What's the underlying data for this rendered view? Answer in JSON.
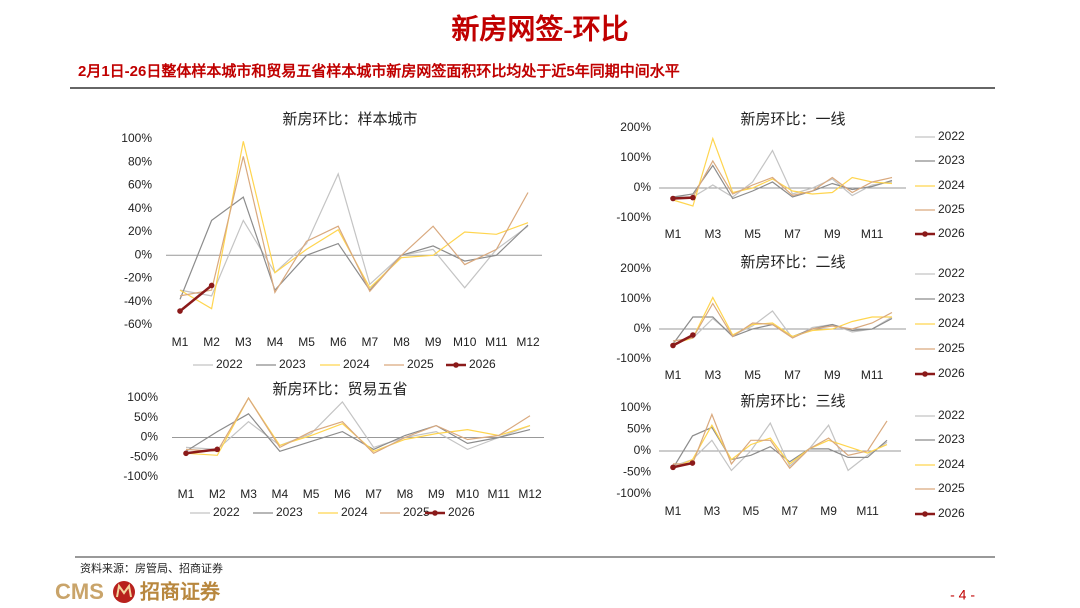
{
  "header": {
    "title": "新房网签-环比",
    "subtitle": "2月1日-26日整体样本城市和贸易五省样本城市新房网签面积环比均处于近5年同期中间水平"
  },
  "chart_data": [
    {
      "type": "line",
      "title": "新房环比：样本城市",
      "legend": "bottom",
      "categories": [
        "M1",
        "M2",
        "M3",
        "M4",
        "M5",
        "M6",
        "M7",
        "M8",
        "M9",
        "M10",
        "M11",
        "M12"
      ],
      "ylim": [
        -60,
        100
      ],
      "yticks": [
        {
          "value": -60,
          "label": "-60%"
        },
        {
          "value": -40,
          "label": "-40%"
        },
        {
          "value": -20,
          "label": "-20%"
        },
        {
          "value": 0,
          "label": "0%"
        },
        {
          "value": 20,
          "label": "20%"
        },
        {
          "value": 40,
          "label": "40%"
        },
        {
          "value": 60,
          "label": "60%"
        },
        {
          "value": 80,
          "label": "80%"
        },
        {
          "value": 100,
          "label": "100%"
        }
      ],
      "series": [
        {
          "name": "2022",
          "color": "#c4c4c4",
          "values": [
            -30,
            -35,
            30,
            -15,
            10,
            70,
            -25,
            0,
            5,
            -28,
            5,
            25
          ]
        },
        {
          "name": "2023",
          "color": "#8c8c8c",
          "values": [
            -38,
            30,
            50,
            -30,
            0,
            10,
            -30,
            0,
            8,
            -5,
            0,
            26
          ]
        },
        {
          "name": "2024",
          "color": "#ffd54f",
          "values": [
            -30,
            -46,
            98,
            -15,
            5,
            22,
            -28,
            -2,
            0,
            20,
            18,
            28
          ]
        },
        {
          "name": "2025",
          "color": "#d9a97e",
          "values": [
            -35,
            -30,
            85,
            -32,
            12,
            25,
            -31,
            0,
            25,
            -8,
            5,
            54
          ]
        },
        {
          "name": "2026",
          "color": "#8b1a1a",
          "values": [
            -48,
            -26,
            null,
            null,
            null,
            null,
            null,
            null,
            null,
            null,
            null,
            null
          ]
        }
      ]
    },
    {
      "type": "line",
      "title": "新房环比：贸易五省",
      "legend": "bottom",
      "categories": [
        "M1",
        "M2",
        "M3",
        "M4",
        "M5",
        "M6",
        "M7",
        "M8",
        "M9",
        "M10",
        "M11",
        "M12"
      ],
      "ylim": [
        -100,
        100
      ],
      "yticks": [
        {
          "value": -100,
          "label": "-100%"
        },
        {
          "value": -50,
          "label": "-50%"
        },
        {
          "value": 0,
          "label": "0%"
        },
        {
          "value": 50,
          "label": "50%"
        },
        {
          "value": 100,
          "label": "100%"
        }
      ],
      "series": [
        {
          "name": "2022",
          "color": "#c4c4c4",
          "values": [
            -25,
            -30,
            40,
            -20,
            10,
            90,
            -25,
            0,
            15,
            -30,
            0,
            30
          ]
        },
        {
          "name": "2023",
          "color": "#8c8c8c",
          "values": [
            -35,
            15,
            60,
            -35,
            -10,
            15,
            -30,
            5,
            30,
            -15,
            0,
            20
          ]
        },
        {
          "name": "2024",
          "color": "#ffd54f",
          "values": [
            -40,
            -45,
            100,
            -20,
            5,
            35,
            -35,
            -5,
            10,
            20,
            5,
            30
          ]
        },
        {
          "name": "2025",
          "color": "#d9a97e",
          "values": [
            -30,
            -35,
            100,
            -25,
            15,
            40,
            -40,
            0,
            30,
            -5,
            5,
            55
          ]
        },
        {
          "name": "2026",
          "color": "#8b1a1a",
          "values": [
            -40,
            -30,
            null,
            null,
            null,
            null,
            null,
            null,
            null,
            null,
            null,
            null
          ]
        }
      ]
    },
    {
      "type": "line",
      "title": "新房环比：一线",
      "legend": "right",
      "categories": [
        "M1",
        null,
        "M3",
        null,
        "M5",
        null,
        "M7",
        null,
        "M9",
        null,
        "M11",
        null
      ],
      "ylim": [
        -100,
        200
      ],
      "yticks": [
        {
          "value": -100,
          "label": "-100%"
        },
        {
          "value": 0,
          "label": "0%"
        },
        {
          "value": 100,
          "label": "100%"
        },
        {
          "value": 200,
          "label": "200%"
        }
      ],
      "series": [
        {
          "name": "2022",
          "color": "#c4c4c4",
          "values": [
            -30,
            -30,
            10,
            -30,
            20,
            125,
            -20,
            0,
            30,
            -25,
            10,
            20
          ]
        },
        {
          "name": "2023",
          "color": "#8c8c8c",
          "values": [
            -30,
            -20,
            75,
            -35,
            -10,
            20,
            -30,
            -10,
            15,
            -5,
            5,
            25
          ]
        },
        {
          "name": "2024",
          "color": "#ffd54f",
          "values": [
            -40,
            -60,
            165,
            -15,
            0,
            30,
            -10,
            -20,
            -15,
            35,
            20,
            15
          ]
        },
        {
          "name": "2025",
          "color": "#d9a97e",
          "values": [
            -35,
            -30,
            90,
            -20,
            10,
            35,
            -25,
            -10,
            35,
            -15,
            20,
            35
          ]
        },
        {
          "name": "2026",
          "color": "#8b1a1a",
          "values": [
            -35,
            -32,
            null,
            null,
            null,
            null,
            null,
            null,
            null,
            null,
            null,
            null
          ]
        }
      ]
    },
    {
      "type": "line",
      "title": "新房环比：二线",
      "legend": "right",
      "categories": [
        "M1",
        null,
        "M3",
        null,
        "M5",
        null,
        "M7",
        null,
        "M9",
        null,
        "M11",
        null
      ],
      "ylim": [
        -100,
        200
      ],
      "yticks": [
        {
          "value": -100,
          "label": "-100%"
        },
        {
          "value": 0,
          "label": "0%"
        },
        {
          "value": 100,
          "label": "100%"
        },
        {
          "value": 200,
          "label": "200%"
        }
      ],
      "series": [
        {
          "name": "2022",
          "color": "#c4c4c4",
          "values": [
            -40,
            -30,
            35,
            -20,
            10,
            60,
            -30,
            5,
            15,
            -10,
            0,
            40
          ]
        },
        {
          "name": "2023",
          "color": "#8c8c8c",
          "values": [
            -50,
            40,
            40,
            -25,
            0,
            15,
            -25,
            0,
            15,
            -5,
            0,
            35
          ]
        },
        {
          "name": "2024",
          "color": "#ffd54f",
          "values": [
            -50,
            -30,
            105,
            -20,
            15,
            20,
            -25,
            -5,
            0,
            25,
            40,
            40
          ]
        },
        {
          "name": "2025",
          "color": "#d9a97e",
          "values": [
            -40,
            -30,
            85,
            -25,
            20,
            15,
            -30,
            0,
            10,
            0,
            20,
            55
          ]
        },
        {
          "name": "2026",
          "color": "#8b1a1a",
          "values": [
            -55,
            -20,
            null,
            null,
            null,
            null,
            null,
            null,
            null,
            null,
            null,
            null
          ]
        }
      ]
    },
    {
      "type": "line",
      "title": "新房环比：三线",
      "legend": "right",
      "categories": [
        "M1",
        null,
        "M3",
        null,
        "M5",
        null,
        "M7",
        null,
        "M9",
        null,
        "M11",
        null
      ],
      "ylim": [
        -100,
        100
      ],
      "yticks": [
        {
          "value": -100,
          "label": "-100%"
        },
        {
          "value": -50,
          "label": "-50%"
        },
        {
          "value": 0,
          "label": "0%"
        },
        {
          "value": 50,
          "label": "50%"
        },
        {
          "value": 100,
          "label": "100%"
        }
      ],
      "series": [
        {
          "name": "2022",
          "color": "#c4c4c4",
          "values": [
            -35,
            -20,
            25,
            -45,
            0,
            65,
            -35,
            5,
            60,
            -45,
            -10,
            20
          ]
        },
        {
          "name": "2023",
          "color": "#8c8c8c",
          "values": [
            -40,
            35,
            55,
            -20,
            -10,
            10,
            -25,
            5,
            5,
            -15,
            -15,
            25
          ]
        },
        {
          "name": "2024",
          "color": "#ffd54f",
          "values": [
            -40,
            -20,
            60,
            -20,
            15,
            30,
            -30,
            5,
            25,
            10,
            -5,
            15
          ]
        },
        {
          "name": "2025",
          "color": "#d9a97e",
          "values": [
            -30,
            -30,
            85,
            -30,
            25,
            25,
            -40,
            5,
            30,
            -10,
            0,
            70
          ]
        },
        {
          "name": "2026",
          "color": "#8b1a1a",
          "values": [
            -38,
            -28,
            null,
            null,
            null,
            null,
            null,
            null,
            null,
            null,
            null,
            null
          ]
        }
      ]
    }
  ],
  "footer": {
    "source": "资料来源：房管局、招商证券",
    "logo": "CMS",
    "logo_name": "招商证券",
    "page": "- 4 -"
  }
}
